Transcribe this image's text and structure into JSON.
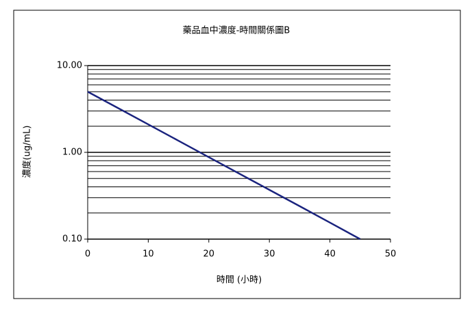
{
  "chart_data": {
    "type": "line",
    "title": "藥品血中濃度-時間關係圖B",
    "x_label": "時間 (小時)",
    "y_label": "濃度(ug/mL)",
    "x": [
      0,
      5,
      10,
      15,
      20,
      25,
      30,
      35,
      40,
      45
    ],
    "series": [
      {
        "name": "濃度",
        "color": "#1a237e",
        "values": [
          5,
          3.24,
          2.1,
          1.36,
          0.88,
          0.57,
          0.37,
          0.24,
          0.155,
          0.1
        ]
      }
    ],
    "xlim": [
      0,
      50
    ],
    "xticks": [
      0,
      10,
      20,
      30,
      40,
      50
    ],
    "ylim": [
      0.1,
      10
    ],
    "yticks": [
      {
        "value": 0.1,
        "label": "0.10"
      },
      {
        "value": 1,
        "label": "1.00"
      },
      {
        "value": 10,
        "label": "10.00"
      }
    ],
    "y_log_scale": true,
    "grid": true,
    "minor_grid": true,
    "legend": false
  }
}
